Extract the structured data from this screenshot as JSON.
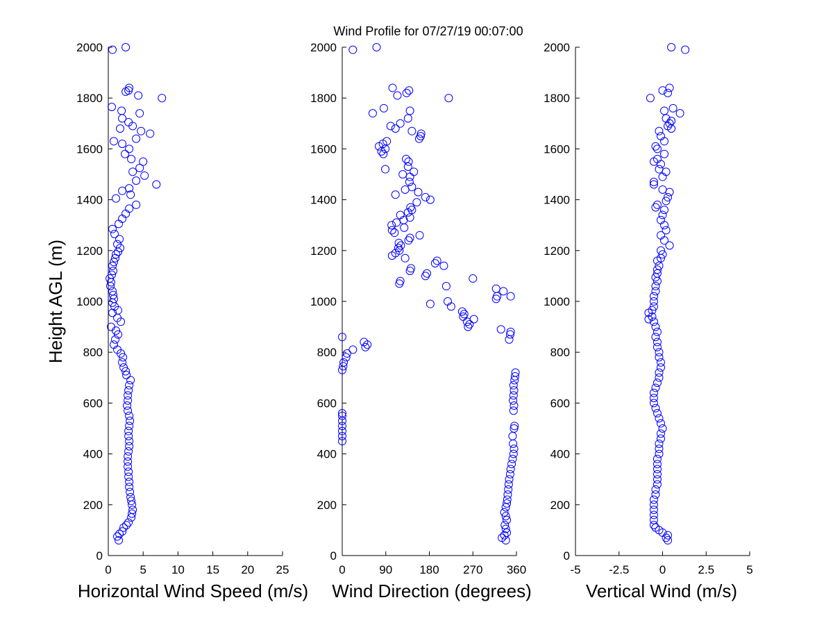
{
  "chart_data": [
    {
      "type": "scatter",
      "title": "Wind Profile for  07/27/19 00:07:00",
      "xlabel": "Horizontal Wind Speed (m/s)",
      "ylabel": "Height AGL (m)",
      "xlim": [
        0,
        25
      ],
      "ylim": [
        0,
        2000
      ],
      "xticks": [
        "0",
        "5",
        "10",
        "15",
        "20",
        "25"
      ],
      "yticks": [
        "0",
        "200",
        "400",
        "600",
        "800",
        "1000",
        "1200",
        "1400",
        "1600",
        "1800",
        "2000"
      ],
      "marker_color": "#0000ff",
      "points": [
        [
          1.5,
          60
        ],
        [
          1.3,
          75
        ],
        [
          1.6,
          85
        ],
        [
          2.0,
          95
        ],
        [
          2.2,
          110
        ],
        [
          2.6,
          120
        ],
        [
          2.9,
          130
        ],
        [
          3.3,
          150
        ],
        [
          3.4,
          165
        ],
        [
          3.5,
          180
        ],
        [
          3.4,
          200
        ],
        [
          3.3,
          215
        ],
        [
          3.2,
          230
        ],
        [
          3.1,
          250
        ],
        [
          3.0,
          270
        ],
        [
          3.0,
          290
        ],
        [
          2.9,
          310
        ],
        [
          2.9,
          330
        ],
        [
          2.8,
          350
        ],
        [
          2.8,
          370
        ],
        [
          2.8,
          390
        ],
        [
          2.9,
          410
        ],
        [
          3.0,
          430
        ],
        [
          3.0,
          450
        ],
        [
          2.9,
          470
        ],
        [
          2.9,
          490
        ],
        [
          3.0,
          510
        ],
        [
          3.1,
          530
        ],
        [
          3.0,
          550
        ],
        [
          2.8,
          570
        ],
        [
          2.7,
          590
        ],
        [
          2.8,
          610
        ],
        [
          2.8,
          630
        ],
        [
          2.9,
          650
        ],
        [
          3.0,
          670
        ],
        [
          3.2,
          690
        ],
        [
          2.6,
          710
        ],
        [
          2.5,
          725
        ],
        [
          2.2,
          740
        ],
        [
          2.0,
          760
        ],
        [
          2.1,
          780
        ],
        [
          1.8,
          795
        ],
        [
          1.3,
          810
        ],
        [
          0.8,
          830
        ],
        [
          1.0,
          850
        ],
        [
          1.4,
          870
        ],
        [
          1.1,
          885
        ],
        [
          0.4,
          900
        ],
        [
          1.8,
          920
        ],
        [
          1.3,
          935
        ],
        [
          0.6,
          955
        ],
        [
          1.4,
          965
        ],
        [
          0.9,
          980
        ],
        [
          0.6,
          995
        ],
        [
          0.8,
          1010
        ],
        [
          0.7,
          1025
        ],
        [
          0.6,
          1040
        ],
        [
          0.3,
          1060
        ],
        [
          0.4,
          1075
        ],
        [
          0.2,
          1090
        ],
        [
          0.5,
          1105
        ],
        [
          0.7,
          1120
        ],
        [
          0.6,
          1140
        ],
        [
          0.8,
          1155
        ],
        [
          1.0,
          1170
        ],
        [
          1.1,
          1185
        ],
        [
          1.4,
          1195
        ],
        [
          1.7,
          1210
        ],
        [
          1.3,
          1225
        ],
        [
          1.6,
          1245
        ],
        [
          0.9,
          1265
        ],
        [
          0.6,
          1285
        ],
        [
          1.5,
          1305
        ],
        [
          2.0,
          1325
        ],
        [
          2.5,
          1345
        ],
        [
          3.0,
          1365
        ],
        [
          4.0,
          1380
        ],
        [
          1.1,
          1405
        ],
        [
          3.2,
          1420
        ],
        [
          2.0,
          1435
        ],
        [
          3.0,
          1445
        ],
        [
          6.9,
          1460
        ],
        [
          4.0,
          1475
        ],
        [
          5.2,
          1495
        ],
        [
          3.5,
          1510
        ],
        [
          4.5,
          1525
        ],
        [
          5.0,
          1550
        ],
        [
          3.3,
          1560
        ],
        [
          2.4,
          1580
        ],
        [
          3.0,
          1600
        ],
        [
          2.0,
          1620
        ],
        [
          0.8,
          1630
        ],
        [
          4.0,
          1640
        ],
        [
          6.0,
          1660
        ],
        [
          4.7,
          1670
        ],
        [
          1.7,
          1680
        ],
        [
          3.5,
          1690
        ],
        [
          2.9,
          1705
        ],
        [
          2.0,
          1720
        ],
        [
          4.5,
          1740
        ],
        [
          1.9,
          1750
        ],
        [
          0.5,
          1765
        ],
        [
          7.7,
          1800
        ],
        [
          2.5,
          1825
        ],
        [
          2.9,
          1830
        ],
        [
          3.0,
          1840
        ],
        [
          4.3,
          1810
        ],
        [
          0.6,
          1990
        ],
        [
          2.5,
          2000
        ]
      ]
    },
    {
      "type": "scatter",
      "xlabel": "Wind Direction (degrees)",
      "xlim": [
        0,
        360
      ],
      "ylim": [
        0,
        2000
      ],
      "xticks": [
        "0",
        "90",
        "180",
        "270",
        "360"
      ],
      "yticks": [
        "0",
        "200",
        "400",
        "600",
        "800",
        "1000",
        "1200",
        "1400",
        "1600",
        "1800",
        "2000"
      ],
      "marker_color": "#0000ff",
      "points": [
        [
          0,
          450
        ],
        [
          0,
          470
        ],
        [
          0,
          490
        ],
        [
          0,
          510
        ],
        [
          0,
          530
        ],
        [
          0,
          550
        ],
        [
          0,
          560
        ],
        [
          0,
          730
        ],
        [
          2,
          745
        ],
        [
          3,
          760
        ],
        [
          8,
          780
        ],
        [
          10,
          795
        ],
        [
          22,
          810
        ],
        [
          48,
          820
        ],
        [
          52,
          830
        ],
        [
          45,
          840
        ],
        [
          0,
          860
        ],
        [
          338,
          60
        ],
        [
          330,
          70
        ],
        [
          335,
          80
        ],
        [
          340,
          90
        ],
        [
          338,
          105
        ],
        [
          336,
          120
        ],
        [
          340,
          140
        ],
        [
          338,
          155
        ],
        [
          335,
          170
        ],
        [
          338,
          190
        ],
        [
          340,
          205
        ],
        [
          341,
          220
        ],
        [
          342,
          240
        ],
        [
          343,
          260
        ],
        [
          344,
          280
        ],
        [
          345,
          300
        ],
        [
          347,
          320
        ],
        [
          348,
          340
        ],
        [
          350,
          360
        ],
        [
          352,
          380
        ],
        [
          354,
          400
        ],
        [
          355,
          420
        ],
        [
          353,
          440
        ],
        [
          352,
          470
        ],
        [
          355,
          500
        ],
        [
          356,
          510
        ],
        [
          354,
          570
        ],
        [
          355,
          590
        ],
        [
          353,
          610
        ],
        [
          354,
          630
        ],
        [
          355,
          650
        ],
        [
          354,
          670
        ],
        [
          356,
          690
        ],
        [
          357,
          705
        ],
        [
          358,
          720
        ],
        [
          345,
          850
        ],
        [
          347,
          870
        ],
        [
          348,
          880
        ],
        [
          328,
          890
        ],
        [
          272,
          930
        ],
        [
          260,
          900
        ],
        [
          263,
          910
        ],
        [
          258,
          920
        ],
        [
          250,
          940
        ],
        [
          252,
          950
        ],
        [
          248,
          960
        ],
        [
          225,
          980
        ],
        [
          182,
          990
        ],
        [
          218,
          1000
        ],
        [
          318,
          1010
        ],
        [
          320,
          1020
        ],
        [
          348,
          1020
        ],
        [
          333,
          1040
        ],
        [
          318,
          1050
        ],
        [
          215,
          1060
        ],
        [
          270,
          1090
        ],
        [
          118,
          1070
        ],
        [
          120,
          1080
        ],
        [
          172,
          1100
        ],
        [
          175,
          1110
        ],
        [
          140,
          1120
        ],
        [
          142,
          1130
        ],
        [
          210,
          1140
        ],
        [
          192,
          1150
        ],
        [
          196,
          1160
        ],
        [
          130,
          1170
        ],
        [
          103,
          1180
        ],
        [
          110,
          1190
        ],
        [
          118,
          1200
        ],
        [
          116,
          1210
        ],
        [
          121,
          1220
        ],
        [
          117,
          1230
        ],
        [
          137,
          1240
        ],
        [
          140,
          1250
        ],
        [
          160,
          1260
        ],
        [
          108,
          1270
        ],
        [
          103,
          1280
        ],
        [
          128,
          1290
        ],
        [
          102,
          1300
        ],
        [
          112,
          1310
        ],
        [
          127,
          1320
        ],
        [
          140,
          1330
        ],
        [
          120,
          1340
        ],
        [
          136,
          1350
        ],
        [
          144,
          1360
        ],
        [
          141,
          1370
        ],
        [
          154,
          1390
        ],
        [
          182,
          1400
        ],
        [
          172,
          1410
        ],
        [
          110,
          1420
        ],
        [
          157,
          1430
        ],
        [
          130,
          1440
        ],
        [
          144,
          1450
        ],
        [
          139,
          1470
        ],
        [
          140,
          1490
        ],
        [
          125,
          1500
        ],
        [
          148,
          1510
        ],
        [
          89,
          1520
        ],
        [
          136,
          1530
        ],
        [
          137,
          1550
        ],
        [
          132,
          1560
        ],
        [
          85,
          1580
        ],
        [
          81,
          1590
        ],
        [
          89,
          1600
        ],
        [
          76,
          1610
        ],
        [
          84,
          1620
        ],
        [
          92,
          1630
        ],
        [
          159,
          1640
        ],
        [
          162,
          1650
        ],
        [
          163,
          1660
        ],
        [
          144,
          1670
        ],
        [
          110,
          1680
        ],
        [
          100,
          1690
        ],
        [
          120,
          1700
        ],
        [
          136,
          1720
        ],
        [
          63,
          1740
        ],
        [
          140,
          1750
        ],
        [
          86,
          1760
        ],
        [
          220,
          1800
        ],
        [
          114,
          1810
        ],
        [
          133,
          1820
        ],
        [
          138,
          1830
        ],
        [
          104,
          1840
        ],
        [
          22,
          1990
        ],
        [
          71,
          2000
        ]
      ]
    },
    {
      "type": "scatter",
      "xlabel": "Vertical Wind (m/s)",
      "xlim": [
        -5,
        5
      ],
      "ylim": [
        0,
        2000
      ],
      "xticks": [
        "-5",
        "-2.5",
        "0",
        "2.5",
        "5"
      ],
      "yticks": [
        "0",
        "200",
        "400",
        "600",
        "800",
        "1000",
        "1200",
        "1400",
        "1600",
        "1800",
        "2000"
      ],
      "marker_color": "#0000ff",
      "points": [
        [
          0.3,
          60
        ],
        [
          0.2,
          70
        ],
        [
          0.3,
          80
        ],
        [
          0.0,
          90
        ],
        [
          -0.2,
          100
        ],
        [
          -0.4,
          110
        ],
        [
          -0.5,
          120
        ],
        [
          -0.5,
          140
        ],
        [
          -0.5,
          160
        ],
        [
          -0.5,
          180
        ],
        [
          -0.5,
          200
        ],
        [
          -0.5,
          220
        ],
        [
          -0.4,
          240
        ],
        [
          -0.4,
          260
        ],
        [
          -0.3,
          280
        ],
        [
          -0.3,
          300
        ],
        [
          -0.3,
          320
        ],
        [
          -0.3,
          340
        ],
        [
          -0.3,
          360
        ],
        [
          -0.3,
          380
        ],
        [
          -0.2,
          400
        ],
        [
          -0.2,
          420
        ],
        [
          -0.2,
          440
        ],
        [
          -0.1,
          460
        ],
        [
          -0.1,
          480
        ],
        [
          0.0,
          500
        ],
        [
          -0.1,
          520
        ],
        [
          -0.2,
          540
        ],
        [
          -0.3,
          560
        ],
        [
          -0.4,
          580
        ],
        [
          -0.5,
          600
        ],
        [
          -0.5,
          620
        ],
        [
          -0.5,
          640
        ],
        [
          -0.4,
          660
        ],
        [
          -0.3,
          680
        ],
        [
          -0.2,
          700
        ],
        [
          -0.2,
          720
        ],
        [
          -0.1,
          740
        ],
        [
          -0.1,
          760
        ],
        [
          -0.2,
          780
        ],
        [
          -0.2,
          800
        ],
        [
          -0.3,
          820
        ],
        [
          -0.3,
          840
        ],
        [
          -0.4,
          860
        ],
        [
          -0.3,
          880
        ],
        [
          -0.4,
          900
        ],
        [
          -0.5,
          920
        ],
        [
          -0.8,
          930
        ],
        [
          -0.6,
          940
        ],
        [
          -0.8,
          955
        ],
        [
          -0.6,
          965
        ],
        [
          -0.5,
          980
        ],
        [
          -0.5,
          1000
        ],
        [
          -0.5,
          1020
        ],
        [
          -0.4,
          1040
        ],
        [
          -0.4,
          1060
        ],
        [
          -0.3,
          1080
        ],
        [
          -0.4,
          1095
        ],
        [
          -0.3,
          1110
        ],
        [
          -0.3,
          1125
        ],
        [
          -0.2,
          1140
        ],
        [
          -0.3,
          1160
        ],
        [
          -0.1,
          1170
        ],
        [
          0.0,
          1185
        ],
        [
          -0.1,
          1200
        ],
        [
          0.4,
          1220
        ],
        [
          0.1,
          1240
        ],
        [
          -0.1,
          1260
        ],
        [
          0.2,
          1280
        ],
        [
          0.1,
          1300
        ],
        [
          -0.1,
          1320
        ],
        [
          0.0,
          1340
        ],
        [
          0.1,
          1360
        ],
        [
          -0.4,
          1370
        ],
        [
          -0.3,
          1380
        ],
        [
          0.2,
          1395
        ],
        [
          0.3,
          1410
        ],
        [
          0.4,
          1430
        ],
        [
          0.0,
          1440
        ],
        [
          -0.5,
          1460
        ],
        [
          -0.5,
          1470
        ],
        [
          0.0,
          1490
        ],
        [
          0.2,
          1510
        ],
        [
          -0.2,
          1520
        ],
        [
          -0.1,
          1540
        ],
        [
          -0.5,
          1550
        ],
        [
          -0.3,
          1560
        ],
        [
          0.1,
          1580
        ],
        [
          -0.3,
          1600
        ],
        [
          -0.4,
          1610
        ],
        [
          0.1,
          1630
        ],
        [
          -0.1,
          1650
        ],
        [
          -0.2,
          1670
        ],
        [
          0.5,
          1680
        ],
        [
          0.3,
          1690
        ],
        [
          0.4,
          1700
        ],
        [
          0.5,
          1710
        ],
        [
          0.2,
          1720
        ],
        [
          1.0,
          1740
        ],
        [
          0.1,
          1750
        ],
        [
          0.6,
          1760
        ],
        [
          -0.7,
          1800
        ],
        [
          0.3,
          1820
        ],
        [
          0.0,
          1830
        ],
        [
          0.4,
          1840
        ],
        [
          1.3,
          1990
        ],
        [
          0.5,
          2000
        ]
      ]
    }
  ]
}
